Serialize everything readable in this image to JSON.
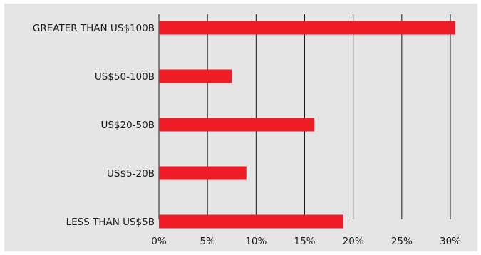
{
  "chart_data": {
    "type": "bar",
    "orientation": "horizontal",
    "categories": [
      "GREATER THAN US$100B",
      "US$50-100B",
      "US$20-50B",
      "US$5-20B",
      "LESS THAN US$5B"
    ],
    "values": [
      30.5,
      7.5,
      16.0,
      9.0,
      19.0
    ],
    "xlim": [
      0,
      30
    ],
    "xticks": [
      0,
      5,
      10,
      15,
      20,
      25,
      30
    ],
    "tick_suffix": "%",
    "grid": "vertical",
    "colors": {
      "bar": "#ee1c25",
      "grid": "#1a1a1a",
      "background": "#e5e5e6"
    }
  }
}
